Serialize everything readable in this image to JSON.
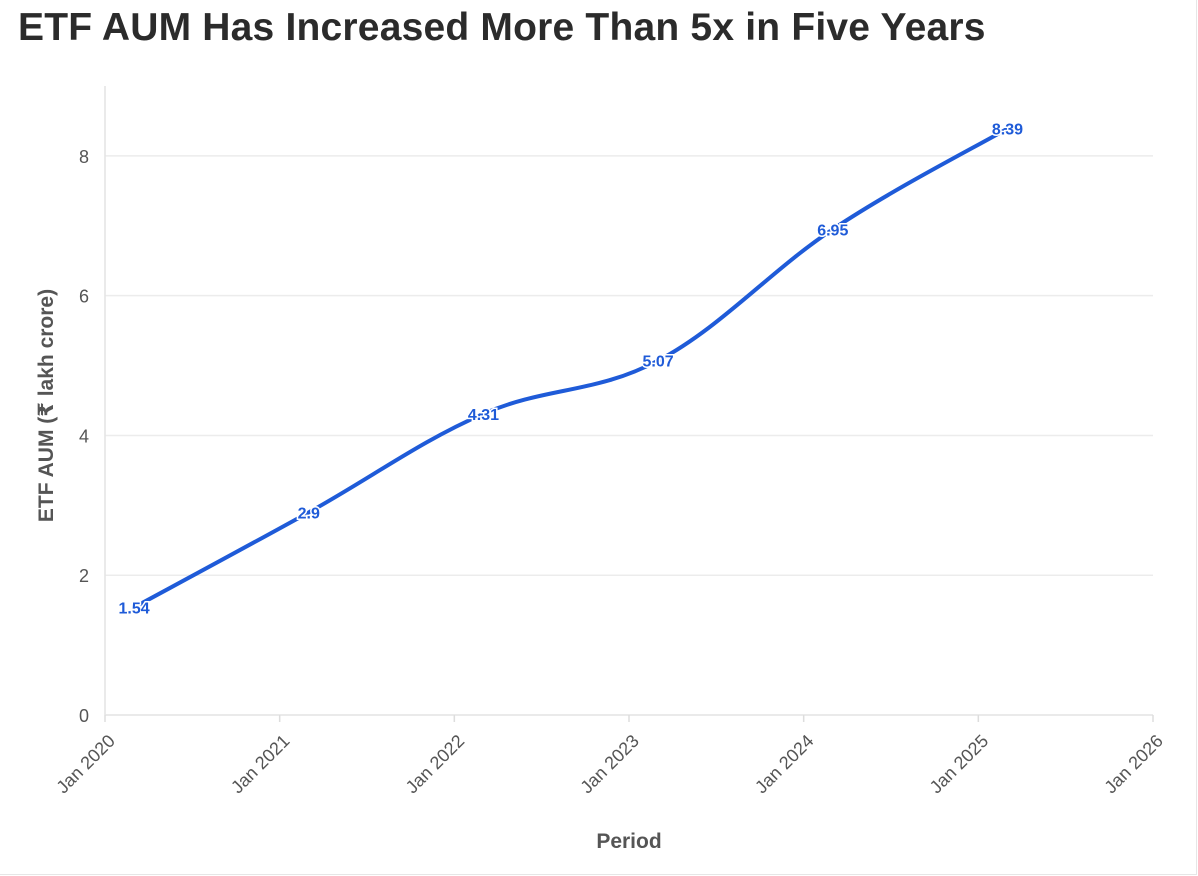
{
  "page": {
    "title": "ETF AUM Has Increased More Than 5x in Five Years"
  },
  "chart_data": {
    "type": "line",
    "title": "ETF AUM Has Increased More Than 5x in Five Years",
    "xlabel": "Period",
    "ylabel": "ETF AUM (₹ lakh crore)",
    "x_ticks": [
      "Jan 2020",
      "Jan 2021",
      "Jan 2022",
      "Jan 2023",
      "Jan 2024",
      "Jan 2025",
      "Jan 2026"
    ],
    "y_ticks": [
      0,
      2,
      4,
      6,
      8
    ],
    "xlim": [
      "2020-01",
      "2026-01"
    ],
    "ylim": [
      0,
      9
    ],
    "grid": true,
    "line_color": "#1f5bd8",
    "series": [
      {
        "x": [
          "2020-03",
          "2021-03",
          "2022-03",
          "2023-03",
          "2024-03",
          "2025-03"
        ],
        "values": [
          1.54,
          2.9,
          4.31,
          5.07,
          6.95,
          8.39
        ],
        "labels": [
          "1.54",
          "2.9",
          "4.31",
          "5.07",
          "6.95",
          "8.39"
        ]
      }
    ]
  }
}
